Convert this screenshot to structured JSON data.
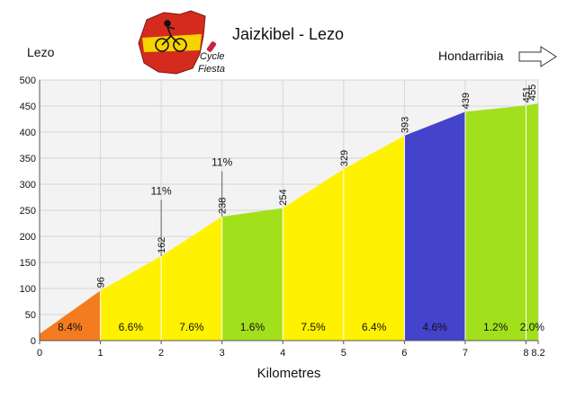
{
  "chart_data": {
    "type": "area",
    "title": "Jaizkibel - Lezo",
    "xlabel": "Kilometres",
    "ylabel": "",
    "start_label": "Lezo",
    "end_label": "Hondarribia",
    "logo_text": [
      "Cycle",
      "Fiesta"
    ],
    "xlim": [
      0,
      8.2
    ],
    "ylim": [
      0,
      500
    ],
    "x_ticks": [
      0,
      1,
      2,
      3,
      4,
      5,
      6,
      7,
      8,
      8.2
    ],
    "y_ticks": [
      0,
      50,
      100,
      150,
      200,
      250,
      300,
      350,
      400,
      450,
      500
    ],
    "grid": true,
    "points": [
      {
        "x": 0,
        "y": 13
      },
      {
        "x": 1,
        "y": 96,
        "label": "96"
      },
      {
        "x": 2,
        "y": 162,
        "label": "162"
      },
      {
        "x": 3,
        "y": 238,
        "label": "238"
      },
      {
        "x": 4,
        "y": 254,
        "label": "254"
      },
      {
        "x": 5,
        "y": 329,
        "label": "329"
      },
      {
        "x": 6,
        "y": 393,
        "label": "393"
      },
      {
        "x": 7,
        "y": 439,
        "label": "439"
      },
      {
        "x": 8,
        "y": 451,
        "label": "451"
      },
      {
        "x": 8.2,
        "y": 455,
        "label": "455"
      }
    ],
    "segments": [
      {
        "from": 0,
        "to": 1,
        "gradient": "8.4%",
        "color": "#f47c20"
      },
      {
        "from": 1,
        "to": 2,
        "gradient": "6.6%",
        "color": "#fff200"
      },
      {
        "from": 2,
        "to": 3,
        "gradient": "7.6%",
        "color": "#fff200"
      },
      {
        "from": 3,
        "to": 4,
        "gradient": "1.6%",
        "color": "#a3e01c"
      },
      {
        "from": 4,
        "to": 5,
        "gradient": "7.5%",
        "color": "#fff200"
      },
      {
        "from": 5,
        "to": 6,
        "gradient": "6.4%",
        "color": "#fff200"
      },
      {
        "from": 6,
        "to": 7,
        "gradient": "4.6%",
        "color": "#4343cc"
      },
      {
        "from": 7,
        "to": 8,
        "gradient": "1.2%",
        "color": "#a3e01c"
      },
      {
        "from": 8,
        "to": 8.2,
        "gradient": "2.0%",
        "color": "#a3e01c"
      }
    ],
    "annotations": [
      {
        "x": 2,
        "y_from": 162,
        "y_to": 270,
        "text": "11%"
      },
      {
        "x": 3,
        "y_from": 238,
        "y_to": 325,
        "text": "11%"
      }
    ]
  }
}
